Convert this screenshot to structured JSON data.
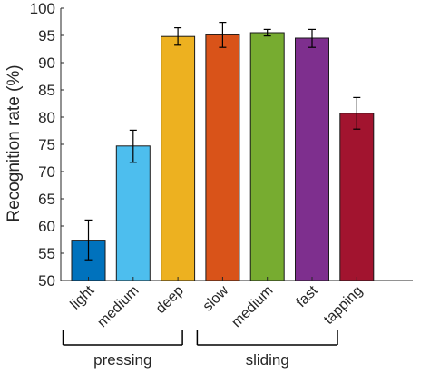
{
  "chart_data": {
    "type": "bar",
    "ylabel": "Recognition rate (%)",
    "ylim": [
      50,
      100
    ],
    "yticks": [
      "50",
      "55",
      "60",
      "65",
      "70",
      "75",
      "80",
      "85",
      "90",
      "95",
      "100"
    ],
    "grid": false,
    "legend": "none",
    "categories": [
      "light",
      "medium",
      "deep",
      "slow",
      "medium",
      "fast",
      "tapping"
    ],
    "values": [
      57.4,
      74.7,
      94.8,
      95.1,
      95.5,
      94.5,
      80.7
    ],
    "error_low": [
      53.8,
      71.7,
      93.2,
      92.8,
      94.9,
      92.8,
      77.8
    ],
    "error_high": [
      61.1,
      77.6,
      96.4,
      97.4,
      96.1,
      96.1,
      83.6
    ],
    "colors": [
      "#0072BD",
      "#4DBEEE",
      "#EDB120",
      "#D95319",
      "#77AC30",
      "#7E2F8E",
      "#A2142F"
    ],
    "groups": [
      {
        "label": "pressing",
        "start": 0,
        "end": 2
      },
      {
        "label": "sliding",
        "start": 3,
        "end": 5
      }
    ]
  }
}
